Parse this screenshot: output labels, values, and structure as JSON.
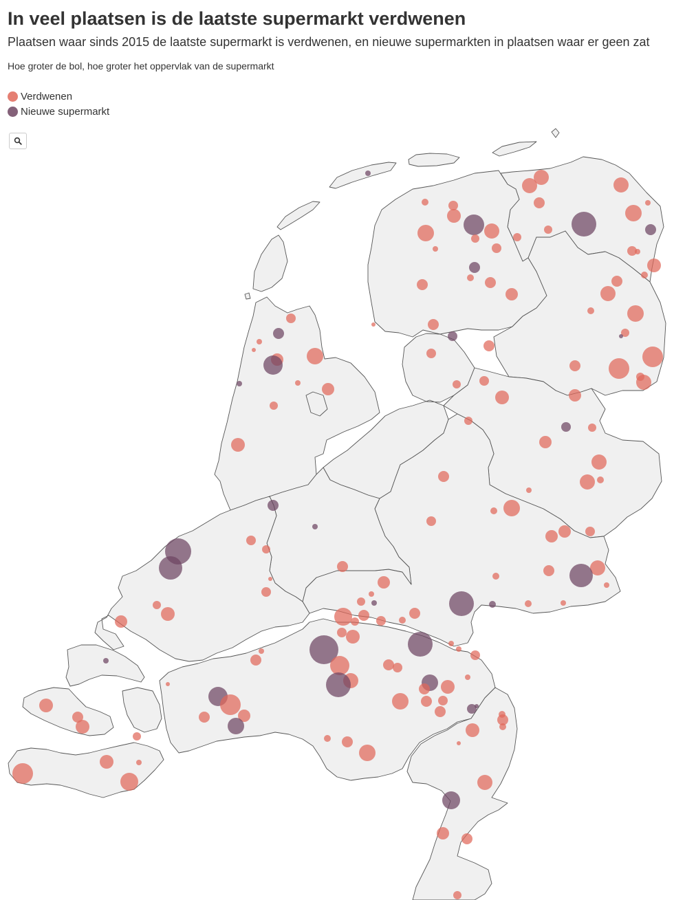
{
  "title": "In veel plaatsen is de laatste supermarkt verdwenen",
  "subtitle": "Plaatsen waar sinds 2015 de laatste supermarkt is verdwenen, en nieuwe supermarkten in plaatsen waar er geen zat",
  "note": "Hoe groter de bol, hoe groter het oppervlak van de supermarkt",
  "legend": [
    {
      "label": "Verdwenen",
      "color": "#e0685a"
    },
    {
      "label": "Nieuwe supermarkt",
      "color": "#6e4562"
    }
  ],
  "zoom_button": {
    "icon": "search-icon"
  },
  "colors": {
    "land": "#f0f0f0",
    "border": "#555555",
    "verdwenen": "#e0685a",
    "nieuw": "#6e4562"
  }
}
